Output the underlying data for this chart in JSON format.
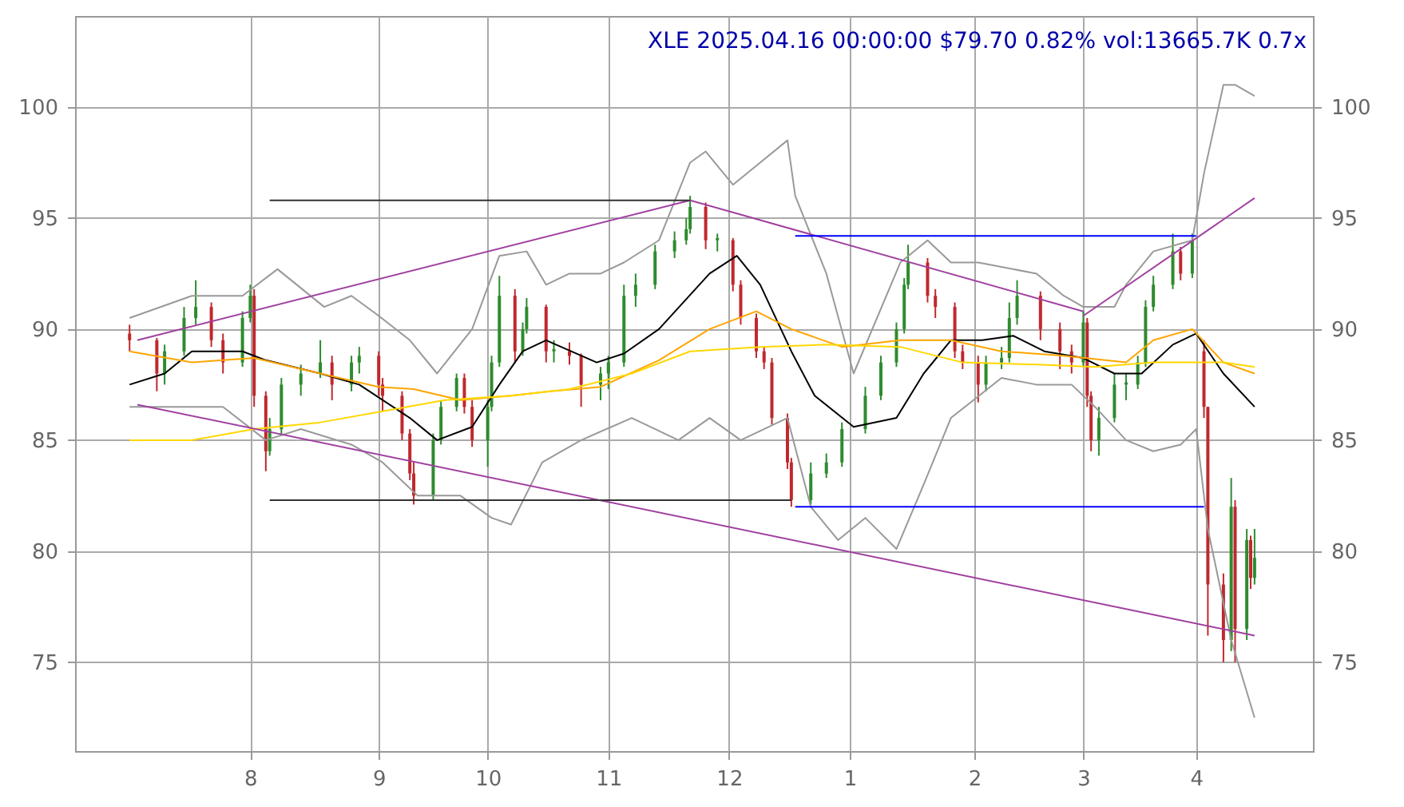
{
  "chart_data": {
    "type": "candlestick",
    "title": "XLE 2025.04.16 00:00:00 $79.70 0.82% vol:13665.7K 0.7x",
    "x": [
      "2024-07-01",
      "2024-07-08",
      "2024-07-10",
      "2024-07-15",
      "2024-07-18",
      "2024-07-22",
      "2024-07-25",
      "2024-07-30",
      "2024-08-01",
      "2024-08-02",
      "2024-08-05",
      "2024-08-06",
      "2024-08-09",
      "2024-08-14",
      "2024-08-19",
      "2024-08-22",
      "2024-08-27",
      "2024-08-29",
      "2024-09-03",
      "2024-09-04",
      "2024-09-09",
      "2024-09-11",
      "2024-09-12",
      "2024-09-17",
      "2024-09-19",
      "2024-09-23",
      "2024-09-25",
      "2024-09-27",
      "2024-10-01",
      "2024-10-02",
      "2024-10-04",
      "2024-10-08",
      "2024-10-10",
      "2024-10-11",
      "2024-10-16",
      "2024-10-18",
      "2024-10-22",
      "2024-10-25",
      "2024-10-30",
      "2024-11-01",
      "2024-11-05",
      "2024-11-08",
      "2024-11-13",
      "2024-11-18",
      "2024-11-21",
      "2024-11-22",
      "2024-11-26",
      "2024-11-29",
      "2024-12-03",
      "2024-12-05",
      "2024-12-09",
      "2024-12-11",
      "2024-12-13",
      "2024-12-17",
      "2024-12-18",
      "2024-12-23",
      "2024-12-27",
      "2024-12-31",
      "2025-01-06",
      "2025-01-10",
      "2025-01-14",
      "2025-01-16",
      "2025-01-17",
      "2025-01-22",
      "2025-01-24",
      "2025-01-29",
      "2025-01-31",
      "2025-02-04",
      "2025-02-06",
      "2025-02-10",
      "2025-02-12",
      "2025-02-14",
      "2025-02-20",
      "2025-02-25",
      "2025-02-28",
      "2025-03-03",
      "2025-03-04",
      "2025-03-05",
      "2025-03-07",
      "2025-03-11",
      "2025-03-14",
      "2025-03-17",
      "2025-03-19",
      "2025-03-21",
      "2025-03-26",
      "2025-03-28",
      "2025-03-31",
      "2025-04-03",
      "2025-04-04",
      "2025-04-08",
      "2025-04-10",
      "2025-04-11",
      "2025-04-14",
      "2025-04-15",
      "2025-04-16"
    ],
    "ohlc": [
      [
        89.8,
        90.2,
        89,
        89.5
      ],
      [
        89.5,
        89.6,
        87.2,
        88
      ],
      [
        88,
        89.3,
        87.5,
        89
      ],
      [
        89,
        91,
        88.8,
        90.5
      ],
      [
        90.5,
        92.2,
        90.2,
        91
      ],
      [
        91,
        91.2,
        89.2,
        89.5
      ],
      [
        89.5,
        89.8,
        88,
        88.5
      ],
      [
        88.5,
        90.8,
        88.3,
        90.5
      ],
      [
        90.5,
        92,
        90.3,
        91.5
      ],
      [
        91.5,
        91.8,
        86.5,
        87
      ],
      [
        87,
        87.2,
        83.6,
        84.5
      ],
      [
        84.5,
        86,
        84.3,
        85.5
      ],
      [
        85.5,
        87.8,
        85.2,
        87.5
      ],
      [
        87.5,
        88.4,
        87,
        88
      ],
      [
        88,
        89.5,
        87.8,
        88.5
      ],
      [
        88.5,
        88.8,
        86.8,
        87.5
      ],
      [
        87.5,
        88.8,
        87.2,
        88.5
      ],
      [
        88.5,
        89.2,
        88,
        88.8
      ],
      [
        88.8,
        89,
        87,
        87.5
      ],
      [
        87.5,
        87.8,
        86.3,
        87
      ],
      [
        87,
        87.2,
        85,
        85.3
      ],
      [
        85.3,
        85.5,
        83.2,
        83.5
      ],
      [
        83.5,
        84,
        82.1,
        82.5
      ],
      [
        82.5,
        85.3,
        82.3,
        85
      ],
      [
        85,
        86.8,
        84.8,
        86.5
      ],
      [
        86.5,
        88,
        86.3,
        87.8
      ],
      [
        87.8,
        88,
        86.2,
        86.5
      ],
      [
        86.5,
        86.8,
        84.7,
        85
      ],
      [
        85,
        86.8,
        83.8,
        86.5
      ],
      [
        86.5,
        88.8,
        86.3,
        88.5
      ],
      [
        88.5,
        92.4,
        88.3,
        91.5
      ],
      [
        91.5,
        91.8,
        88.5,
        89
      ],
      [
        89,
        90.3,
        88.8,
        90
      ],
      [
        90,
        91.4,
        89.8,
        91
      ],
      [
        91,
        91.1,
        88.5,
        89
      ],
      [
        89,
        89.5,
        88.5,
        89.1
      ],
      [
        89,
        89.4,
        88.4,
        88.8
      ],
      [
        88.8,
        88.9,
        86.5,
        87.5
      ],
      [
        87.5,
        88.3,
        86.8,
        88
      ],
      [
        88,
        88.8,
        87.3,
        88.5
      ],
      [
        88.5,
        92,
        88.3,
        91.5
      ],
      [
        91.5,
        92.5,
        91,
        92
      ],
      [
        92,
        93.8,
        91.8,
        93.5
      ],
      [
        93.5,
        94.4,
        93.2,
        94
      ],
      [
        94,
        95,
        93.8,
        94.5
      ],
      [
        94.5,
        96,
        94.3,
        95.5
      ],
      [
        95.5,
        95.7,
        93.6,
        94
      ],
      [
        94,
        94.3,
        93.5,
        94.1
      ],
      [
        94,
        94.1,
        91.7,
        92
      ],
      [
        92,
        92.2,
        90.2,
        90.5
      ],
      [
        90.5,
        90.7,
        88.7,
        89
      ],
      [
        89,
        89.2,
        88.2,
        88.5
      ],
      [
        88.5,
        88.7,
        85.7,
        86
      ],
      [
        86,
        86.2,
        83.7,
        84
      ],
      [
        84,
        84.2,
        82,
        82.3
      ],
      [
        82.3,
        84,
        82.1,
        83.5
      ],
      [
        83.5,
        84.4,
        83.3,
        84
      ],
      [
        84,
        85.8,
        83.8,
        85.5
      ],
      [
        85.5,
        87.4,
        85.3,
        87
      ],
      [
        87,
        88.8,
        86.8,
        88.5
      ],
      [
        88.5,
        90.3,
        88.3,
        90
      ],
      [
        90,
        92.3,
        89.8,
        92
      ],
      [
        92,
        93.8,
        91.8,
        93
      ],
      [
        93,
        93.2,
        91.2,
        91.5
      ],
      [
        91.5,
        91.8,
        90.5,
        91
      ],
      [
        91,
        91.2,
        88.7,
        89
      ],
      [
        89,
        89.3,
        88.2,
        88.5
      ],
      [
        88.5,
        88.8,
        86.7,
        87.5
      ],
      [
        87.5,
        88.8,
        87.2,
        88.5
      ],
      [
        88.5,
        89.2,
        88.2,
        88.7
      ],
      [
        88.7,
        91.2,
        88.5,
        90.5
      ],
      [
        90.5,
        92.2,
        90.2,
        91.5
      ],
      [
        91.5,
        91.7,
        89.5,
        90
      ],
      [
        90,
        90.3,
        88.2,
        89
      ],
      [
        89,
        89.3,
        88,
        88.5
      ],
      [
        88.5,
        90.8,
        88.3,
        90.3
      ],
      [
        90.3,
        90.5,
        86.5,
        87
      ],
      [
        87,
        87.2,
        84.5,
        85
      ],
      [
        85,
        86.5,
        84.3,
        86
      ],
      [
        86,
        88,
        85.8,
        87.5
      ],
      [
        87.5,
        88,
        86.8,
        87.6
      ],
      [
        87.5,
        88.8,
        87.3,
        88.5
      ],
      [
        88.5,
        91.3,
        88.3,
        91
      ],
      [
        91,
        92.4,
        90.8,
        92
      ],
      [
        92,
        94.3,
        91.8,
        93.5
      ],
      [
        93.5,
        93.7,
        92.2,
        92.5
      ],
      [
        92.5,
        94.3,
        92.3,
        94
      ],
      [
        89,
        89.5,
        86,
        86.5
      ],
      [
        86.5,
        86.5,
        76.2,
        78.5
      ],
      [
        78.5,
        79,
        75,
        76
      ],
      [
        76,
        83.3,
        75.5,
        82
      ],
      [
        82,
        82.3,
        75,
        76.5
      ],
      [
        76.5,
        81,
        76,
        80.5
      ],
      [
        80.5,
        80.7,
        78.3,
        78.8
      ],
      [
        78.8,
        81,
        78.5,
        79.7
      ]
    ],
    "colors": [
      "#c0282d",
      "#c0282d",
      "#2e8b2e",
      "#2e8b2e",
      "#2e8b2e",
      "#c0282d",
      "#c0282d",
      "#2e8b2e",
      "#2e8b2e",
      "#c0282d",
      "#c0282d",
      "#2e8b2e",
      "#2e8b2e",
      "#2e8b2e",
      "#2e8b2e",
      "#c0282d",
      "#2e8b2e",
      "#2e8b2e",
      "#c0282d",
      "#c0282d",
      "#c0282d",
      "#c0282d",
      "#c0282d",
      "#2e8b2e",
      "#2e8b2e",
      "#2e8b2e",
      "#c0282d",
      "#c0282d",
      "#2e8b2e",
      "#2e8b2e",
      "#2e8b2e",
      "#c0282d",
      "#2e8b2e",
      "#2e8b2e",
      "#c0282d",
      "#2e8b2e",
      "#c0282d",
      "#c0282d",
      "#2e8b2e",
      "#2e8b2e",
      "#2e8b2e",
      "#2e8b2e",
      "#2e8b2e",
      "#2e8b2e",
      "#2e8b2e",
      "#2e8b2e",
      "#c0282d",
      "#2e8b2e",
      "#c0282d",
      "#c0282d",
      "#c0282d",
      "#c0282d",
      "#c0282d",
      "#c0282d",
      "#c0282d",
      "#2e8b2e",
      "#2e8b2e",
      "#2e8b2e",
      "#2e8b2e",
      "#2e8b2e",
      "#2e8b2e",
      "#2e8b2e",
      "#2e8b2e",
      "#c0282d",
      "#c0282d",
      "#c0282d",
      "#c0282d",
      "#c0282d",
      "#2e8b2e",
      "#2e8b2e",
      "#2e8b2e",
      "#2e8b2e",
      "#c0282d",
      "#c0282d",
      "#c0282d",
      "#2e8b2e",
      "#c0282d",
      "#c0282d",
      "#2e8b2e",
      "#2e8b2e",
      "#2e8b2e",
      "#2e8b2e",
      "#2e8b2e",
      "#2e8b2e",
      "#2e8b2e",
      "#c0282d",
      "#2e8b2e",
      "#c0282d",
      "#c0282d",
      "#c0282d",
      "#2e8b2e",
      "#c0282d",
      "#2e8b2e",
      "#c0282d",
      "#2e8b2e"
    ],
    "series": [
      {
        "type": "line",
        "color": "#000000",
        "x": [
          "2024-07-01",
          "2024-07-10",
          "2024-07-17",
          "2024-07-30",
          "2024-08-05",
          "2024-08-19",
          "2024-08-29",
          "2024-09-11",
          "2024-09-18",
          "2024-09-27",
          "2024-10-04",
          "2024-10-10",
          "2024-10-16",
          "2024-10-29",
          "2024-11-05",
          "2024-11-14",
          "2024-11-27",
          "2024-12-04",
          "2024-12-10",
          "2024-12-18",
          "2024-12-24",
          "2025-01-03",
          "2025-01-14",
          "2025-01-21",
          "2025-01-28",
          "2025-02-05",
          "2025-02-13",
          "2025-02-21",
          "2025-03-03",
          "2025-03-11",
          "2025-03-18",
          "2025-03-26",
          "2025-04-01",
          "2025-04-08",
          "2025-04-16"
        ],
        "values": [
          87.5,
          88,
          89,
          89,
          88.6,
          88,
          87.5,
          86,
          85,
          85.6,
          87.5,
          89,
          89.5,
          88.5,
          88.9,
          90,
          92.5,
          93.3,
          92,
          89,
          87,
          85.6,
          86,
          88,
          89.5,
          89.5,
          89.7,
          89,
          88.7,
          88,
          88,
          89.3,
          89.8,
          88,
          86.5
        ]
      },
      {
        "type": "line",
        "color": "#999999",
        "x": [
          "2024-07-01",
          "2024-07-17",
          "2024-07-30",
          "2024-08-08",
          "2024-08-20",
          "2024-08-27",
          "2024-09-03",
          "2024-09-11",
          "2024-09-18",
          "2024-09-27",
          "2024-10-04",
          "2024-10-11",
          "2024-10-16",
          "2024-10-22",
          "2024-10-30",
          "2024-11-05",
          "2024-11-14",
          "2024-11-22",
          "2024-11-26",
          "2024-12-03",
          "2024-12-10",
          "2024-12-17",
          "2024-12-19",
          "2024-12-27",
          "2025-01-03",
          "2025-01-15",
          "2025-01-22",
          "2025-01-28",
          "2025-02-04",
          "2025-02-19",
          "2025-02-26",
          "2025-03-03",
          "2025-03-11",
          "2025-03-14",
          "2025-03-21",
          "2025-03-31",
          "2025-04-03",
          "2025-04-08",
          "2025-04-11",
          "2025-04-16"
        ],
        "values": [
          90.5,
          91.5,
          91.5,
          92.7,
          91,
          91.5,
          90.6,
          89.5,
          88,
          90,
          93.3,
          93.5,
          92,
          92.5,
          92.5,
          93,
          94,
          97.5,
          98,
          96.5,
          97.5,
          98.5,
          96,
          92.5,
          88,
          93,
          94,
          93,
          93,
          92.5,
          91.5,
          91,
          91,
          92,
          93.5,
          94,
          97,
          101,
          101,
          100.5
        ]
      },
      {
        "type": "line",
        "color": "#999999",
        "x": [
          "2024-07-01",
          "2024-07-17",
          "2024-07-25",
          "2024-08-05",
          "2024-08-14",
          "2024-08-27",
          "2024-09-04",
          "2024-09-13",
          "2024-09-24",
          "2024-10-02",
          "2024-10-07",
          "2024-10-15",
          "2024-10-25",
          "2024-11-07",
          "2024-11-19",
          "2024-11-27",
          "2024-12-05",
          "2024-12-17",
          "2024-12-23",
          "2024-12-30",
          "2025-01-06",
          "2025-01-14",
          "2025-01-21",
          "2025-01-28",
          "2025-02-10",
          "2025-02-19",
          "2025-02-28",
          "2025-03-06",
          "2025-03-14",
          "2025-03-21",
          "2025-03-28",
          "2025-04-01",
          "2025-04-04",
          "2025-04-10",
          "2025-04-16"
        ],
        "values": [
          86.5,
          86.5,
          86.5,
          85,
          85.5,
          84.8,
          84,
          82.5,
          82.5,
          81.5,
          81.2,
          84,
          85,
          86,
          85,
          86,
          85,
          86,
          82,
          80.5,
          81.5,
          80.1,
          83,
          86,
          87.8,
          87.5,
          87.5,
          86.5,
          85,
          84.5,
          84.8,
          85.5,
          81,
          76,
          72.5
        ]
      },
      {
        "type": "line",
        "color": "#ffa500",
        "x": [
          "2024-07-01",
          "2024-07-17",
          "2024-08-02",
          "2024-08-19",
          "2024-09-03",
          "2024-09-12",
          "2024-09-24",
          "2024-10-07",
          "2024-10-17",
          "2024-10-30",
          "2024-11-14",
          "2024-11-27",
          "2024-12-09",
          "2024-12-18",
          "2024-12-31",
          "2025-01-15",
          "2025-01-28",
          "2025-02-10",
          "2025-02-26",
          "2025-03-14",
          "2025-03-21",
          "2025-03-31",
          "2025-04-08",
          "2025-04-16"
        ],
        "values": [
          89,
          88.5,
          88.7,
          88,
          87.4,
          87.3,
          86.8,
          87,
          87.2,
          87.4,
          88.6,
          90,
          90.8,
          90,
          89.2,
          89.5,
          89.5,
          89,
          88.8,
          88.5,
          89.5,
          90,
          88.5,
          88
        ]
      },
      {
        "type": "line",
        "color": "#ffd700",
        "x": [
          "2024-07-01",
          "2024-07-17",
          "2024-08-02",
          "2024-08-19",
          "2024-09-04",
          "2024-09-20",
          "2024-10-07",
          "2024-10-22",
          "2024-11-07",
          "2024-11-22",
          "2024-12-10",
          "2024-12-27",
          "2025-01-15",
          "2025-01-31",
          "2025-02-19",
          "2025-03-06",
          "2025-03-21",
          "2025-04-08",
          "2025-04-16"
        ],
        "values": [
          85,
          85,
          85.5,
          85.8,
          86.3,
          86.8,
          87,
          87.3,
          88,
          89,
          89.2,
          89.3,
          89.2,
          88.5,
          88.4,
          88.3,
          88.5,
          88.5,
          88.3
        ]
      },
      {
        "type": "line",
        "color": "#a040a0",
        "x": [
          "2024-07-03",
          "2024-11-22",
          "2025-03-03"
        ],
        "values": [
          89.5,
          95.8,
          90.8
        ]
      },
      {
        "type": "line",
        "color": "#a040a0",
        "x": [
          "2025-03-03",
          "2025-04-16"
        ],
        "values": [
          90.6,
          95.9
        ]
      },
      {
        "type": "line",
        "color": "#a040a0",
        "x": [
          "2024-07-03",
          "2025-04-16"
        ],
        "values": [
          86.6,
          76.2
        ]
      },
      {
        "type": "line",
        "color": "#333333",
        "x": [
          "2024-08-06",
          "2024-11-22"
        ],
        "values": [
          95.8,
          95.8
        ]
      },
      {
        "type": "line",
        "color": "#333333",
        "x": [
          "2024-08-06",
          "2024-12-18"
        ],
        "values": [
          82.3,
          82.3
        ]
      },
      {
        "type": "line",
        "color": "#0000ff",
        "x": [
          "2024-12-19",
          "2025-04-01"
        ],
        "values": [
          94.2,
          94.2
        ]
      },
      {
        "type": "line",
        "color": "#0000ff",
        "x": [
          "2024-12-19",
          "2025-04-03"
        ],
        "values": [
          82,
          82
        ]
      }
    ],
    "xlim": [
      "2024-06-17",
      "2025-05-01"
    ],
    "xticks": [
      {
        "value": "2024-08-01",
        "label": "8"
      },
      {
        "value": "2024-09-03",
        "label": "9"
      },
      {
        "value": "2024-10-01",
        "label": "10"
      },
      {
        "value": "2024-11-01",
        "label": "11"
      },
      {
        "value": "2024-12-02",
        "label": "12"
      },
      {
        "value": "2025-01-02",
        "label": "1"
      },
      {
        "value": "2025-02-03",
        "label": "2"
      },
      {
        "value": "2025-03-03",
        "label": "3"
      },
      {
        "value": "2025-04-01",
        "label": "4"
      }
    ],
    "ylim": [
      71,
      104.1
    ],
    "yticks": [
      75,
      80,
      85,
      90,
      95,
      100
    ],
    "y2lim": [
      71,
      104.1
    ],
    "y2ticks": [
      75,
      80,
      85,
      90,
      95,
      100
    ],
    "grid": true
  }
}
